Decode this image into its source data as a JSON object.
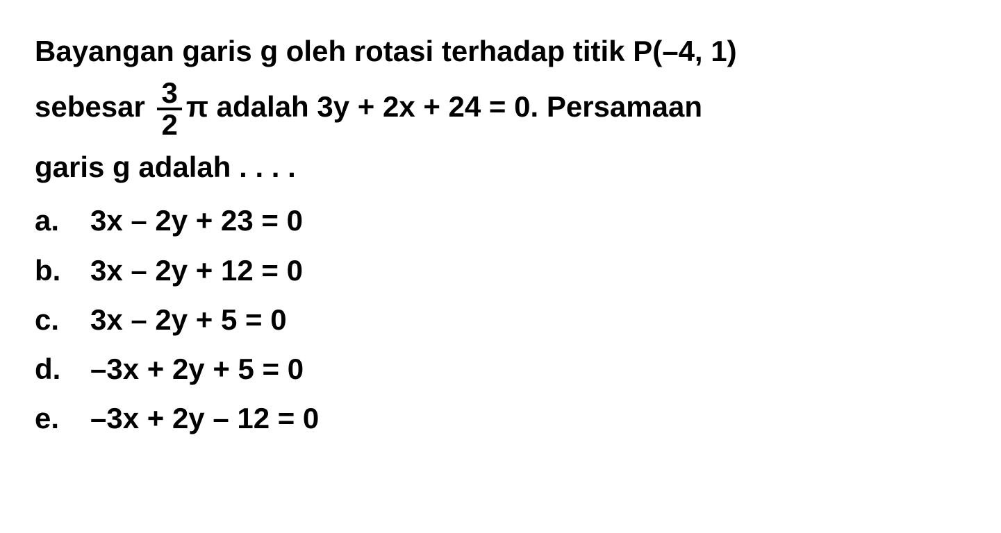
{
  "question": {
    "line1_part1": "Bayangan garis g oleh rotasi terhadap titik P(–4, 1)",
    "line2_part1": "sebesar ",
    "fraction_num": "3",
    "fraction_den": "2",
    "pi_symbol": "π",
    "line2_part2": " adalah 3y + 2x + 24 = 0. Persamaan",
    "line3": "garis g adalah . . . ."
  },
  "options": [
    {
      "letter": "a.",
      "text": "3x – 2y + 23 = 0"
    },
    {
      "letter": "b.",
      "text": "3x – 2y + 12 = 0"
    },
    {
      "letter": "c.",
      "text": "3x – 2y + 5 = 0"
    },
    {
      "letter": "d.",
      "text": "–3x + 2y + 5 = 0"
    },
    {
      "letter": "e.",
      "text": "–3x + 2y – 12 = 0"
    }
  ],
  "style": {
    "background_color": "#ffffff",
    "text_color": "#000000",
    "font_family": "Arial, Helvetica, sans-serif",
    "font_size_pt": 42,
    "font_weight": "bold"
  }
}
